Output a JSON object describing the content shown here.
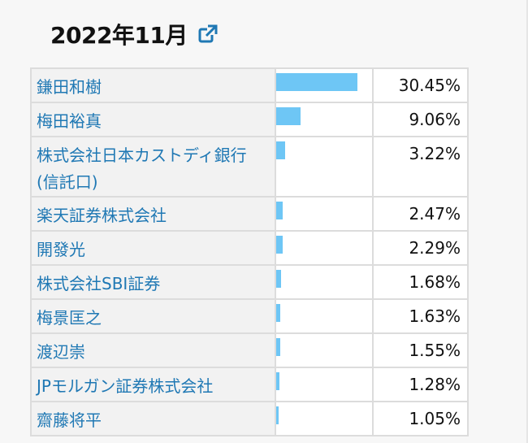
{
  "header": {
    "title": "2022年11月",
    "icon": "external-link-icon",
    "accent_color": "#1f78b4"
  },
  "colors": {
    "bar": "#6ec6f5",
    "link": "#1f78b4"
  },
  "shareholders": [
    {
      "name": "鎌田和樹",
      "percent": "30.45%",
      "value": 30.45
    },
    {
      "name": "梅田裕真",
      "percent": "9.06%",
      "value": 9.06
    },
    {
      "name": "株式会社日本カストディ銀行(信託口)",
      "percent": "3.22%",
      "value": 3.22
    },
    {
      "name": "楽天証券株式会社",
      "percent": "2.47%",
      "value": 2.47
    },
    {
      "name": "開發光",
      "percent": "2.29%",
      "value": 2.29
    },
    {
      "name": "株式会社SBI証券",
      "percent": "1.68%",
      "value": 1.68
    },
    {
      "name": "梅景匡之",
      "percent": "1.63%",
      "value": 1.63
    },
    {
      "name": "渡辺崇",
      "percent": "1.55%",
      "value": 1.55
    },
    {
      "name": "JPモルガン証券株式会社",
      "percent": "1.28%",
      "value": 1.28
    },
    {
      "name": "齋藤将平",
      "percent": "1.05%",
      "value": 1.05
    }
  ]
}
